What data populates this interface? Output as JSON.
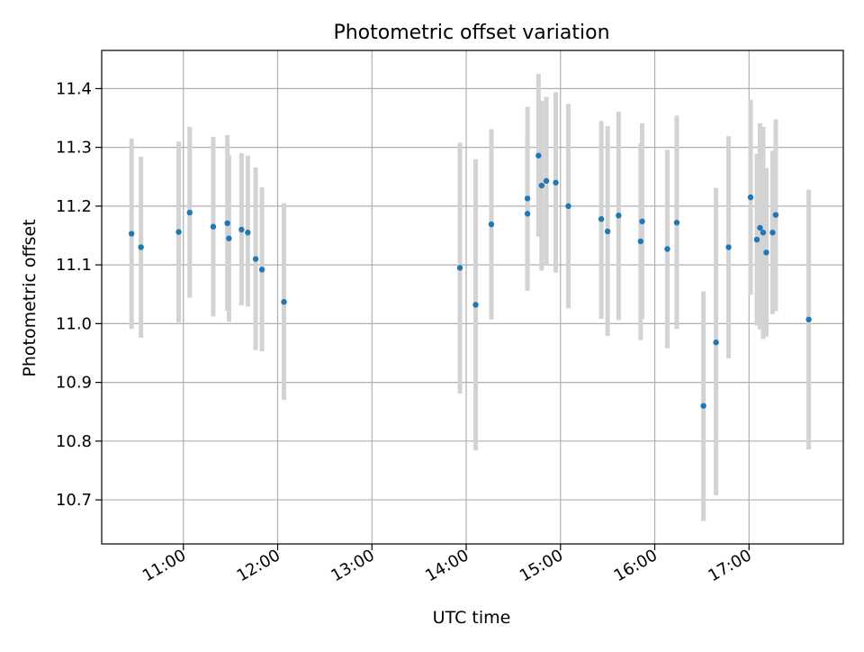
{
  "chart_data": {
    "type": "scatter",
    "title": "Photometric offset variation",
    "xlabel": "UTC time",
    "ylabel": "Photometric offset",
    "x_ticks": [
      "11:00",
      "12:00",
      "13:00",
      "14:00",
      "15:00",
      "16:00",
      "17:00"
    ],
    "y_ticks": [
      "10.7",
      "10.8",
      "10.9",
      "11.0",
      "11.1",
      "11.2",
      "11.3",
      "11.4"
    ],
    "xlim": [
      "10:08",
      "18:00"
    ],
    "ylim": [
      10.625,
      11.465
    ],
    "grid": true,
    "point_color": "#1f77b4",
    "errorbar_color": "#d3d3d3",
    "series": [
      {
        "points": [
          {
            "t": "10:27",
            "y": 11.153,
            "lo": 10.991,
            "hi": 11.315
          },
          {
            "t": "10:33",
            "y": 11.13,
            "lo": 10.976,
            "hi": 11.284
          },
          {
            "t": "10:57",
            "y": 11.156,
            "lo": 11.002,
            "hi": 11.31
          },
          {
            "t": "11:04",
            "y": 11.189,
            "lo": 11.044,
            "hi": 11.335
          },
          {
            "t": "11:19",
            "y": 11.165,
            "lo": 11.012,
            "hi": 11.318
          },
          {
            "t": "11:28",
            "y": 11.171,
            "lo": 11.022,
            "hi": 11.321
          },
          {
            "t": "11:29",
            "y": 11.145,
            "lo": 11.003,
            "hi": 11.287
          },
          {
            "t": "11:37",
            "y": 11.16,
            "lo": 11.031,
            "hi": 11.29
          },
          {
            "t": "11:41",
            "y": 11.155,
            "lo": 11.029,
            "hi": 11.286
          },
          {
            "t": "11:46",
            "y": 11.11,
            "lo": 10.955,
            "hi": 11.266
          },
          {
            "t": "11:50",
            "y": 11.092,
            "lo": 10.953,
            "hi": 11.232
          },
          {
            "t": "12:04",
            "y": 11.037,
            "lo": 10.87,
            "hi": 11.205
          },
          {
            "t": "13:56",
            "y": 11.095,
            "lo": 10.881,
            "hi": 11.308
          },
          {
            "t": "14:06",
            "y": 11.032,
            "lo": 10.784,
            "hi": 11.28
          },
          {
            "t": "14:16",
            "y": 11.169,
            "lo": 11.007,
            "hi": 11.331
          },
          {
            "t": "14:39",
            "y": 11.213,
            "lo": 11.057,
            "hi": 11.369
          },
          {
            "t": "14:39",
            "y": 11.187,
            "lo": 11.056,
            "hi": 11.318
          },
          {
            "t": "14:46",
            "y": 11.286,
            "lo": 11.148,
            "hi": 11.425
          },
          {
            "t": "14:48",
            "y": 11.235,
            "lo": 11.09,
            "hi": 11.379
          },
          {
            "t": "14:51",
            "y": 11.243,
            "lo": 11.1,
            "hi": 11.386
          },
          {
            "t": "14:57",
            "y": 11.24,
            "lo": 11.087,
            "hi": 11.394
          },
          {
            "t": "15:05",
            "y": 11.2,
            "lo": 11.026,
            "hi": 11.374
          },
          {
            "t": "15:26",
            "y": 11.178,
            "lo": 11.008,
            "hi": 11.345
          },
          {
            "t": "15:30",
            "y": 11.157,
            "lo": 10.979,
            "hi": 11.336
          },
          {
            "t": "15:37",
            "y": 11.184,
            "lo": 11.006,
            "hi": 11.361
          },
          {
            "t": "15:51",
            "y": 11.14,
            "lo": 10.972,
            "hi": 11.307
          },
          {
            "t": "15:52",
            "y": 11.174,
            "lo": 11.008,
            "hi": 11.341
          },
          {
            "t": "16:08",
            "y": 11.127,
            "lo": 10.958,
            "hi": 11.296
          },
          {
            "t": "16:14",
            "y": 11.172,
            "lo": 10.991,
            "hi": 11.354
          },
          {
            "t": "16:31",
            "y": 10.86,
            "lo": 10.664,
            "hi": 11.055
          },
          {
            "t": "16:39",
            "y": 10.968,
            "lo": 10.708,
            "hi": 11.231
          },
          {
            "t": "16:47",
            "y": 11.13,
            "lo": 10.941,
            "hi": 11.319
          },
          {
            "t": "17:01",
            "y": 11.215,
            "lo": 11.049,
            "hi": 11.381
          },
          {
            "t": "17:05",
            "y": 11.143,
            "lo": 10.997,
            "hi": 11.289
          },
          {
            "t": "17:07",
            "y": 11.163,
            "lo": 10.99,
            "hi": 11.341
          },
          {
            "t": "17:09",
            "y": 11.155,
            "lo": 10.974,
            "hi": 11.335
          },
          {
            "t": "17:11",
            "y": 11.121,
            "lo": 10.978,
            "hi": 11.265
          },
          {
            "t": "17:15",
            "y": 11.155,
            "lo": 11.016,
            "hi": 11.294
          },
          {
            "t": "17:17",
            "y": 11.185,
            "lo": 11.021,
            "hi": 11.348
          },
          {
            "t": "17:38",
            "y": 11.007,
            "lo": 10.786,
            "hi": 11.228
          }
        ]
      }
    ]
  }
}
